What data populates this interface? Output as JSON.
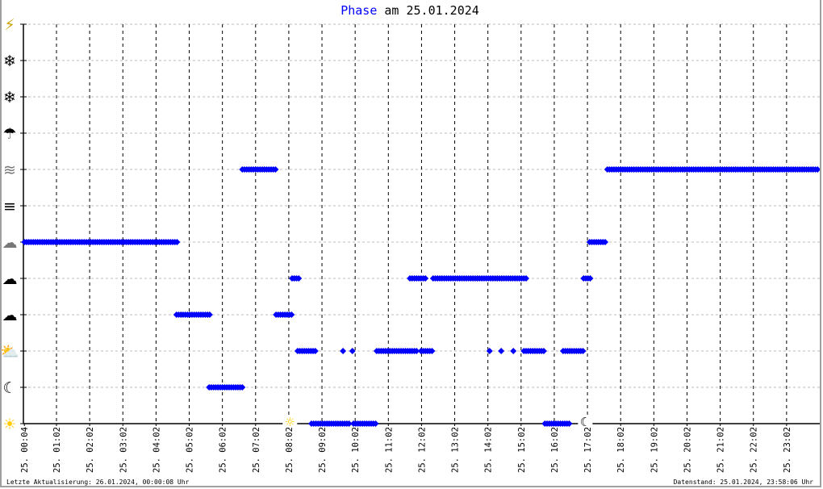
{
  "title": {
    "highlight": "Phase",
    "rest": " am 25.01.2024"
  },
  "footer": {
    "left": "Letzte Aktualisierung: 26.01.2024, 00:00:08 Uhr",
    "right": "Datenstand: 25.01.2024, 23:58:06 Uhr"
  },
  "colors": {
    "series": "#0000ff",
    "sun": "#ffcc00",
    "grid": "#bbbbbb",
    "axis": "#000000"
  },
  "chart_data": {
    "type": "scatter",
    "title": "Phase am 25.01.2024",
    "xlabel": "",
    "ylabel": "",
    "xlim": [
      "00:04",
      "23:58"
    ],
    "x_tick_labels": [
      "25. 00:04",
      "25. 01:02",
      "25. 02:02",
      "25. 03:02",
      "25. 04:02",
      "25. 05:02",
      "25. 06:02",
      "25. 07:02",
      "25. 08:02",
      "25. 09:02",
      "25. 10:02",
      "25. 11:02",
      "25. 12:02",
      "25. 13:02",
      "25. 14:02",
      "25. 15:02",
      "25. 16:02",
      "25. 17:02",
      "25. 18:02",
      "25. 19:02",
      "25. 20:02",
      "25. 21:02",
      "25. 22:02",
      "25. 23:02"
    ],
    "y_categories": [
      "sun-clear-icon",
      "moon-clear-night-icon",
      "partly-cloudy-day-icon",
      "partly-cloudy-night-icon",
      "cloud-icon",
      "overcast-cloud-icon",
      "fog-icon",
      "haze-fog-sun-icon",
      "rain-icon",
      "sleet-icon",
      "snow-icon",
      "thunderstorm-icon"
    ],
    "axis_markers": [
      {
        "time": "08:04",
        "icon": "sunrise-sun-icon"
      },
      {
        "time": "16:58",
        "icon": "sunset-moon-icon"
      }
    ],
    "grid": {
      "vertical_hours": "dashed",
      "horizontal_levels": "dotted"
    },
    "series": [
      {
        "segments": [
          {
            "start": "00:04",
            "end": "04:42",
            "level": 5
          },
          {
            "start": "04:39",
            "end": "05:41",
            "level": 3
          },
          {
            "start": "05:38",
            "end": "06:40",
            "level": 1
          },
          {
            "start": "06:38",
            "end": "07:40",
            "level": 7
          },
          {
            "start": "07:39",
            "end": "08:09",
            "level": 3
          },
          {
            "start": "08:08",
            "end": "08:21",
            "level": 4
          },
          {
            "start": "08:18",
            "end": "08:52",
            "level": 2
          },
          {
            "start": "08:43",
            "end": "09:52",
            "level": 0
          },
          {
            "start": "09:40",
            "end": "09:40",
            "level": 2
          },
          {
            "start": "09:57",
            "end": "09:57",
            "level": 2
          },
          {
            "start": "09:59",
            "end": "10:41",
            "level": 0
          },
          {
            "start": "10:41",
            "end": "11:54",
            "level": 2
          },
          {
            "start": "11:41",
            "end": "12:10",
            "level": 4
          },
          {
            "start": "12:01",
            "end": "12:23",
            "level": 2
          },
          {
            "start": "12:23",
            "end": "15:14",
            "level": 4
          },
          {
            "start": "14:05",
            "end": "14:05",
            "level": 2
          },
          {
            "start": "14:26",
            "end": "14:26",
            "level": 2
          },
          {
            "start": "14:48",
            "end": "14:48",
            "level": 2
          },
          {
            "start": "15:07",
            "end": "15:46",
            "level": 2
          },
          {
            "start": "15:45",
            "end": "16:31",
            "level": 0
          },
          {
            "start": "16:18",
            "end": "16:56",
            "level": 2
          },
          {
            "start": "16:55",
            "end": "17:09",
            "level": 4
          },
          {
            "start": "17:06",
            "end": "17:37",
            "level": 5
          },
          {
            "start": "17:38",
            "end": "23:58",
            "level": 7
          }
        ]
      }
    ]
  }
}
